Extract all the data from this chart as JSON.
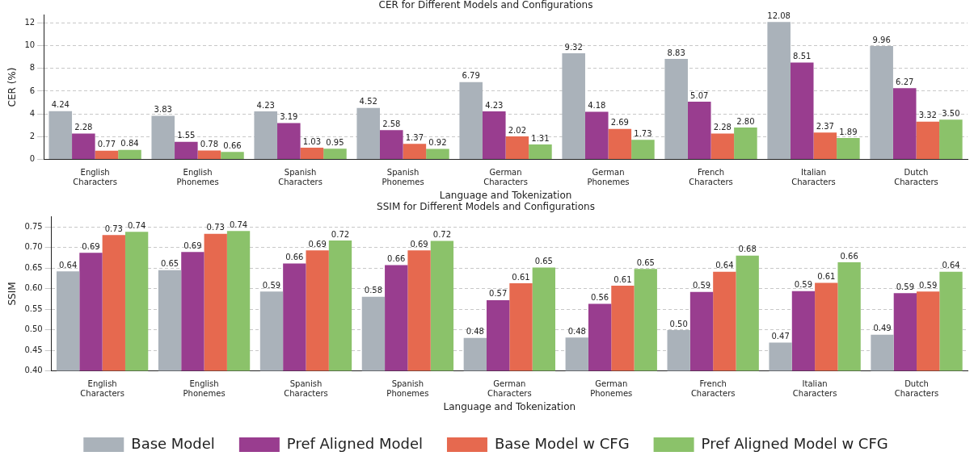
{
  "chart_data": [
    {
      "type": "bar",
      "title": "CER for Different Models and Configurations",
      "xlabel": "Language and Tokenization",
      "ylabel": "CER (%)",
      "categories": [
        "English Characters",
        "English Phonemes",
        "Spanish Characters",
        "Spanish Phonemes",
        "German Characters",
        "German Phonemes",
        "French Characters",
        "Italian Characters",
        "Dutch Characters"
      ],
      "series": [
        {
          "color": "#aab2ba",
          "values": [
            4.24,
            3.83,
            4.23,
            4.52,
            6.79,
            9.32,
            8.83,
            12.08,
            9.96
          ],
          "value_labels": [
            "4.24",
            "3.83",
            "4.23",
            "4.52",
            "6.79",
            "9.32",
            "8.83",
            "12.08",
            "9.96"
          ]
        },
        {
          "color": "#993d8f",
          "values": [
            2.28,
            1.55,
            3.19,
            2.58,
            4.23,
            4.18,
            5.07,
            8.51,
            6.27
          ],
          "value_labels": [
            "2.28",
            "1.55",
            "3.19",
            "2.58",
            "4.23",
            "4.18",
            "5.07",
            "8.51",
            "6.27"
          ]
        },
        {
          "color": "#e6694f",
          "values": [
            0.77,
            0.78,
            1.03,
            1.37,
            2.02,
            2.69,
            2.28,
            2.37,
            3.32
          ],
          "value_labels": [
            "0.77",
            "0.78",
            "1.03",
            "1.37",
            "2.02",
            "2.69",
            "2.28",
            "2.37",
            "3.32"
          ]
        },
        {
          "color": "#8bc26a",
          "values": [
            0.84,
            0.66,
            0.95,
            0.92,
            1.31,
            1.73,
            2.8,
            1.89,
            3.5
          ],
          "value_labels": [
            "0.84",
            "0.66",
            "0.95",
            "0.92",
            "1.31",
            "1.73",
            "2.80",
            "1.89",
            "3.50"
          ]
        }
      ],
      "ylim": [
        0,
        12.7
      ],
      "yticks": [
        0,
        2,
        4,
        6,
        8,
        10,
        12
      ],
      "grid": "y",
      "legend": false
    },
    {
      "type": "bar",
      "title": "SSIM for Different Models and Configurations",
      "xlabel": "Language and Tokenization",
      "ylabel": "SSIM",
      "categories": [
        "English Characters",
        "English Phonemes",
        "Spanish Characters",
        "Spanish Phonemes",
        "German Characters",
        "German Phonemes",
        "French Characters",
        "Italian Characters",
        "Dutch Characters"
      ],
      "series": [
        {
          "name": "Base Model",
          "color": "#aab2ba",
          "values": [
            0.642,
            0.645,
            0.593,
            0.58,
            0.48,
            0.481,
            0.499,
            0.469,
            0.488
          ],
          "value_labels": [
            "0.64",
            "0.65",
            "0.59",
            "0.58",
            "0.48",
            "0.48",
            "0.50",
            "0.47",
            "0.49"
          ]
        },
        {
          "name": "Pref Aligned Model",
          "color": "#993d8f",
          "values": [
            0.687,
            0.689,
            0.661,
            0.657,
            0.572,
            0.563,
            0.592,
            0.594,
            0.589
          ],
          "value_labels": [
            "0.69",
            "0.69",
            "0.66",
            "0.66",
            "0.57",
            "0.56",
            "0.59",
            "0.59",
            "0.59"
          ]
        },
        {
          "name": "Base Model w CFG",
          "color": "#e6694f",
          "values": [
            0.73,
            0.733,
            0.693,
            0.693,
            0.613,
            0.607,
            0.641,
            0.614,
            0.593
          ],
          "value_labels": [
            "0.73",
            "0.73",
            "0.69",
            "0.69",
            "0.61",
            "0.61",
            "0.64",
            "0.61",
            "0.59"
          ]
        },
        {
          "name": "Pref Aligned Model w CFG",
          "color": "#8bc26a",
          "values": [
            0.738,
            0.74,
            0.717,
            0.716,
            0.651,
            0.648,
            0.68,
            0.664,
            0.641
          ],
          "value_labels": [
            "0.74",
            "0.74",
            "0.72",
            "0.72",
            "0.65",
            "0.65",
            "0.68",
            "0.66",
            "0.64"
          ]
        }
      ],
      "ylim": [
        0.4,
        0.775
      ],
      "yticks": [
        {
          "value": 0.4,
          "label": "0.40"
        },
        {
          "value": 0.45,
          "label": "0.45"
        },
        {
          "value": 0.5,
          "label": "0.50"
        },
        {
          "value": 0.55,
          "label": "0.55"
        },
        {
          "value": 0.6,
          "label": "0.60"
        },
        {
          "value": 0.65,
          "label": "0.65"
        },
        {
          "value": 0.7,
          "label": "0.70"
        },
        {
          "value": 0.75,
          "label": "0.75"
        }
      ],
      "grid": "y",
      "legend": "bottom"
    }
  ]
}
